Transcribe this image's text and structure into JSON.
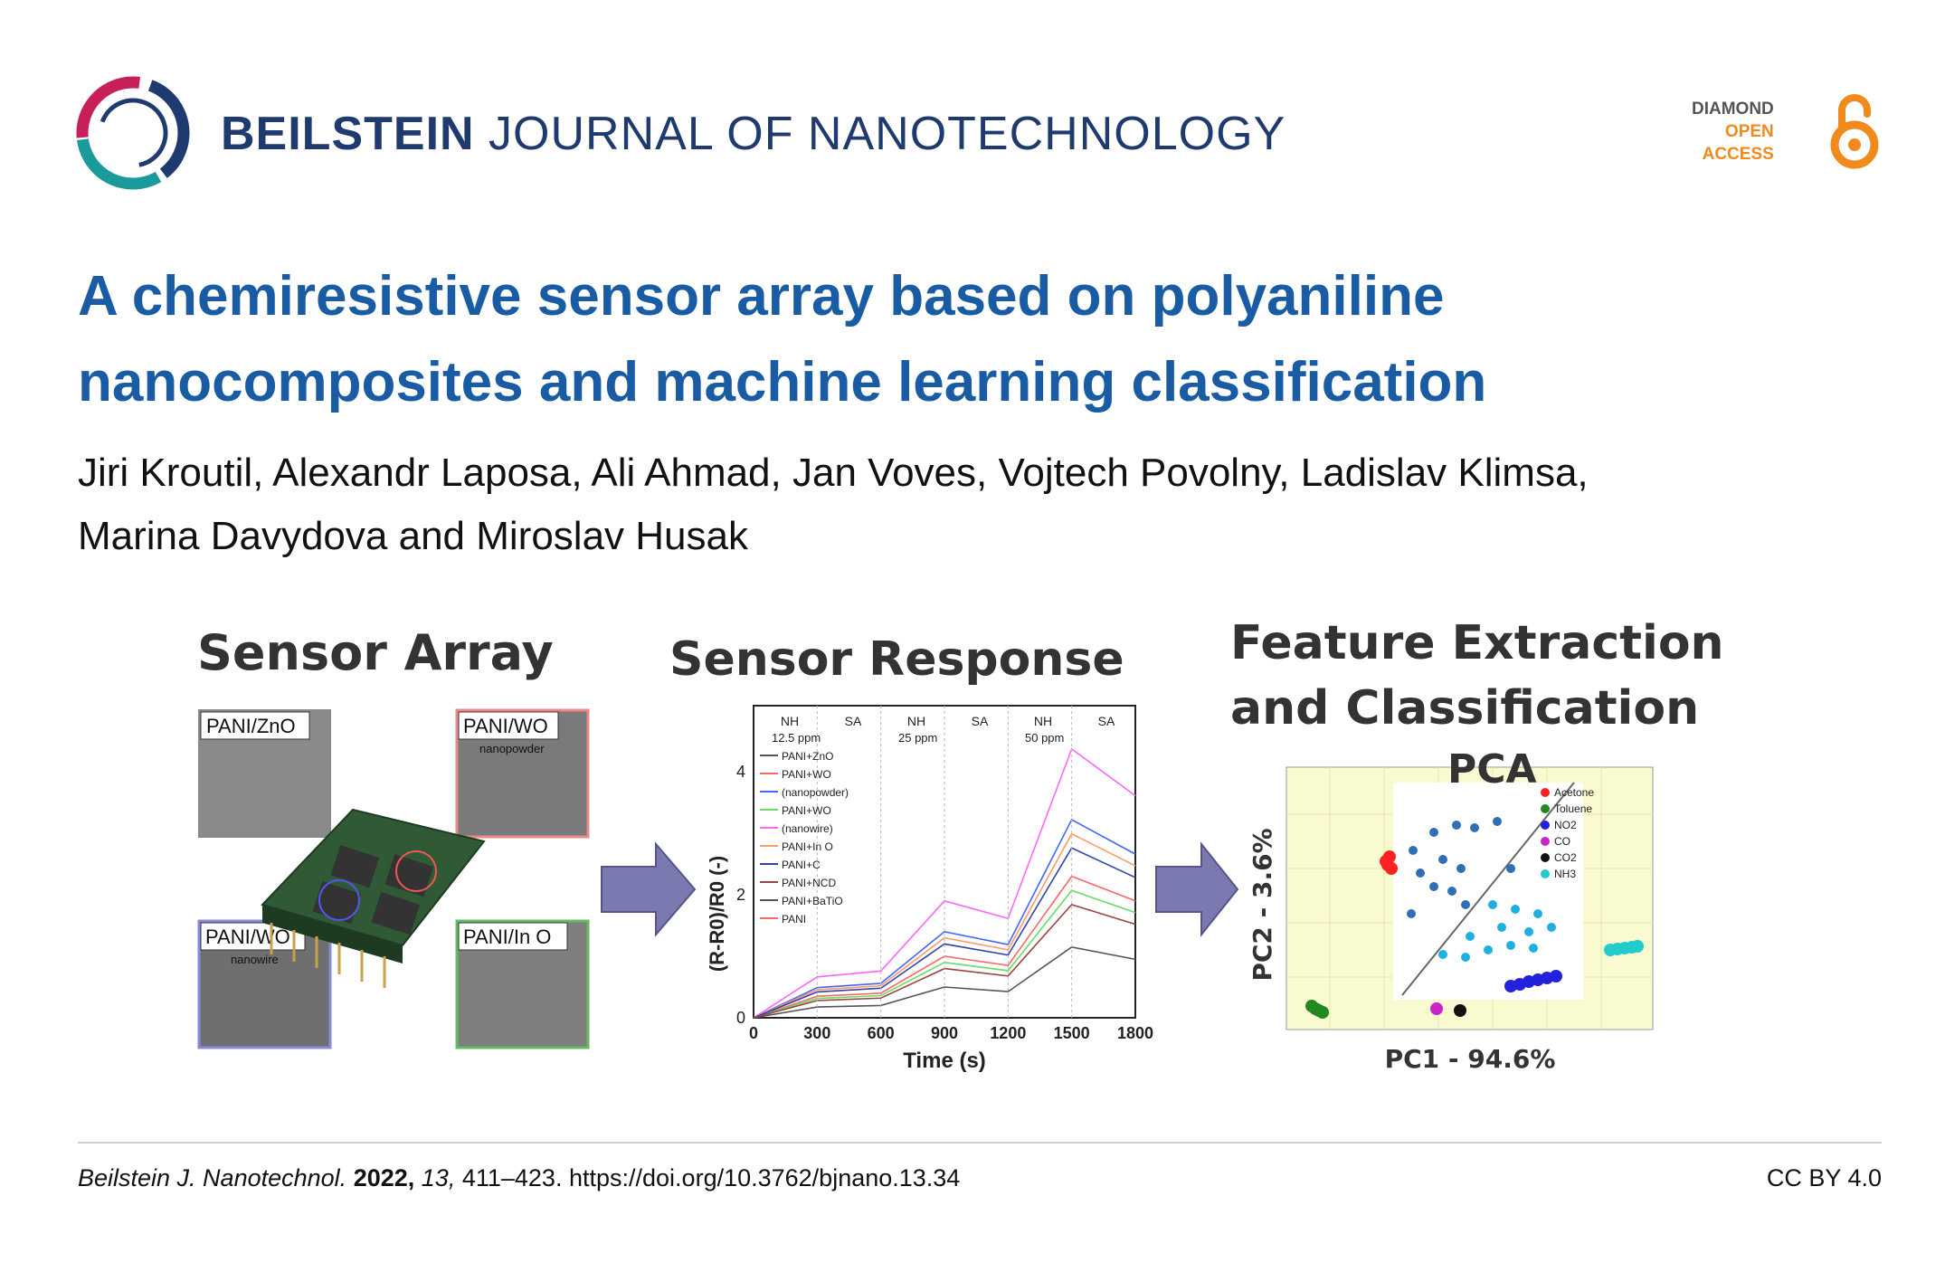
{
  "header": {
    "journal_bold": "BEILSTEIN",
    "journal_light": "JOURNAL OF NANOTECHNOLOGY",
    "oa_line1": "DIAMOND",
    "oa_line2": "OPEN",
    "oa_line3": "ACCESS",
    "colors": {
      "journal": "#1f3a6e",
      "title": "#1a5ca4",
      "oa_orange": "#f08a1c"
    }
  },
  "article": {
    "title": "A chemiresistive sensor array based on polyaniline nanocomposites and machine learning classification",
    "authors_line1": "Jiri Kroutil, Alexandr Laposa, Ali Ahmad, Jan Voves, Vojtech Povolny, Ladislav Klimsa,",
    "authors_line2": "Marina Davydova and Miroslav Husak"
  },
  "graphic": {
    "panel1": {
      "heading": "Sensor Array",
      "labels": [
        "PANI/ZnO",
        "PANI/WO",
        "PANI/WO",
        "PANI/In O"
      ],
      "sublabels": [
        "nanopowder",
        "nanowire"
      ]
    },
    "panel2": {
      "heading": "Sensor Response",
      "ylabel": "(R-R0)/R0 (-)",
      "xlabel": "Time (s)",
      "xticks": [
        "0",
        "300",
        "600",
        "900",
        "1200",
        "1500",
        "1800"
      ],
      "yticks": [
        "0",
        "2",
        "4"
      ],
      "phases": [
        "NH",
        "SA",
        "NH",
        "SA",
        "NH",
        "SA"
      ],
      "conc": [
        "12.5 ppm",
        "25 ppm",
        "50 ppm"
      ],
      "legend": [
        "PANI+ZnO",
        "PANI+WO",
        "(nanopowder)",
        "PANI+WO",
        "(nanowire)",
        "PANI+In O",
        "PANI+C",
        "PANI+NCD",
        "PANI+BaTiO",
        "PANI"
      ],
      "series_colors": [
        "#555555",
        "#ff6666",
        "#4466ff",
        "#66dd66",
        "#ff66ff",
        "#ff9966",
        "#3344aa",
        "#994444"
      ]
    },
    "panel3": {
      "heading_line1": "Feature Extraction",
      "heading_line2": "and Classification",
      "pca_label": "PCA",
      "xlabel": "PC1 - 94.6%",
      "ylabel": "PC2 - 3.6%",
      "legend": [
        {
          "name": "Acetone",
          "color": "#ff2222"
        },
        {
          "name": "Toluene",
          "color": "#228822"
        },
        {
          "name": "NO2",
          "color": "#2222dd"
        },
        {
          "name": "CO",
          "color": "#cc22cc"
        },
        {
          "name": "CO2",
          "color": "#111111"
        },
        {
          "name": "NH3",
          "color": "#22cccc"
        }
      ]
    }
  },
  "footer": {
    "journal_abbrev": "Beilstein J. Nanotechnol.",
    "year": "2022,",
    "volume": "13,",
    "pages": "411–423.",
    "doi": "https://doi.org/10.3762/bjnano.13.34",
    "license": "CC BY 4.0"
  }
}
